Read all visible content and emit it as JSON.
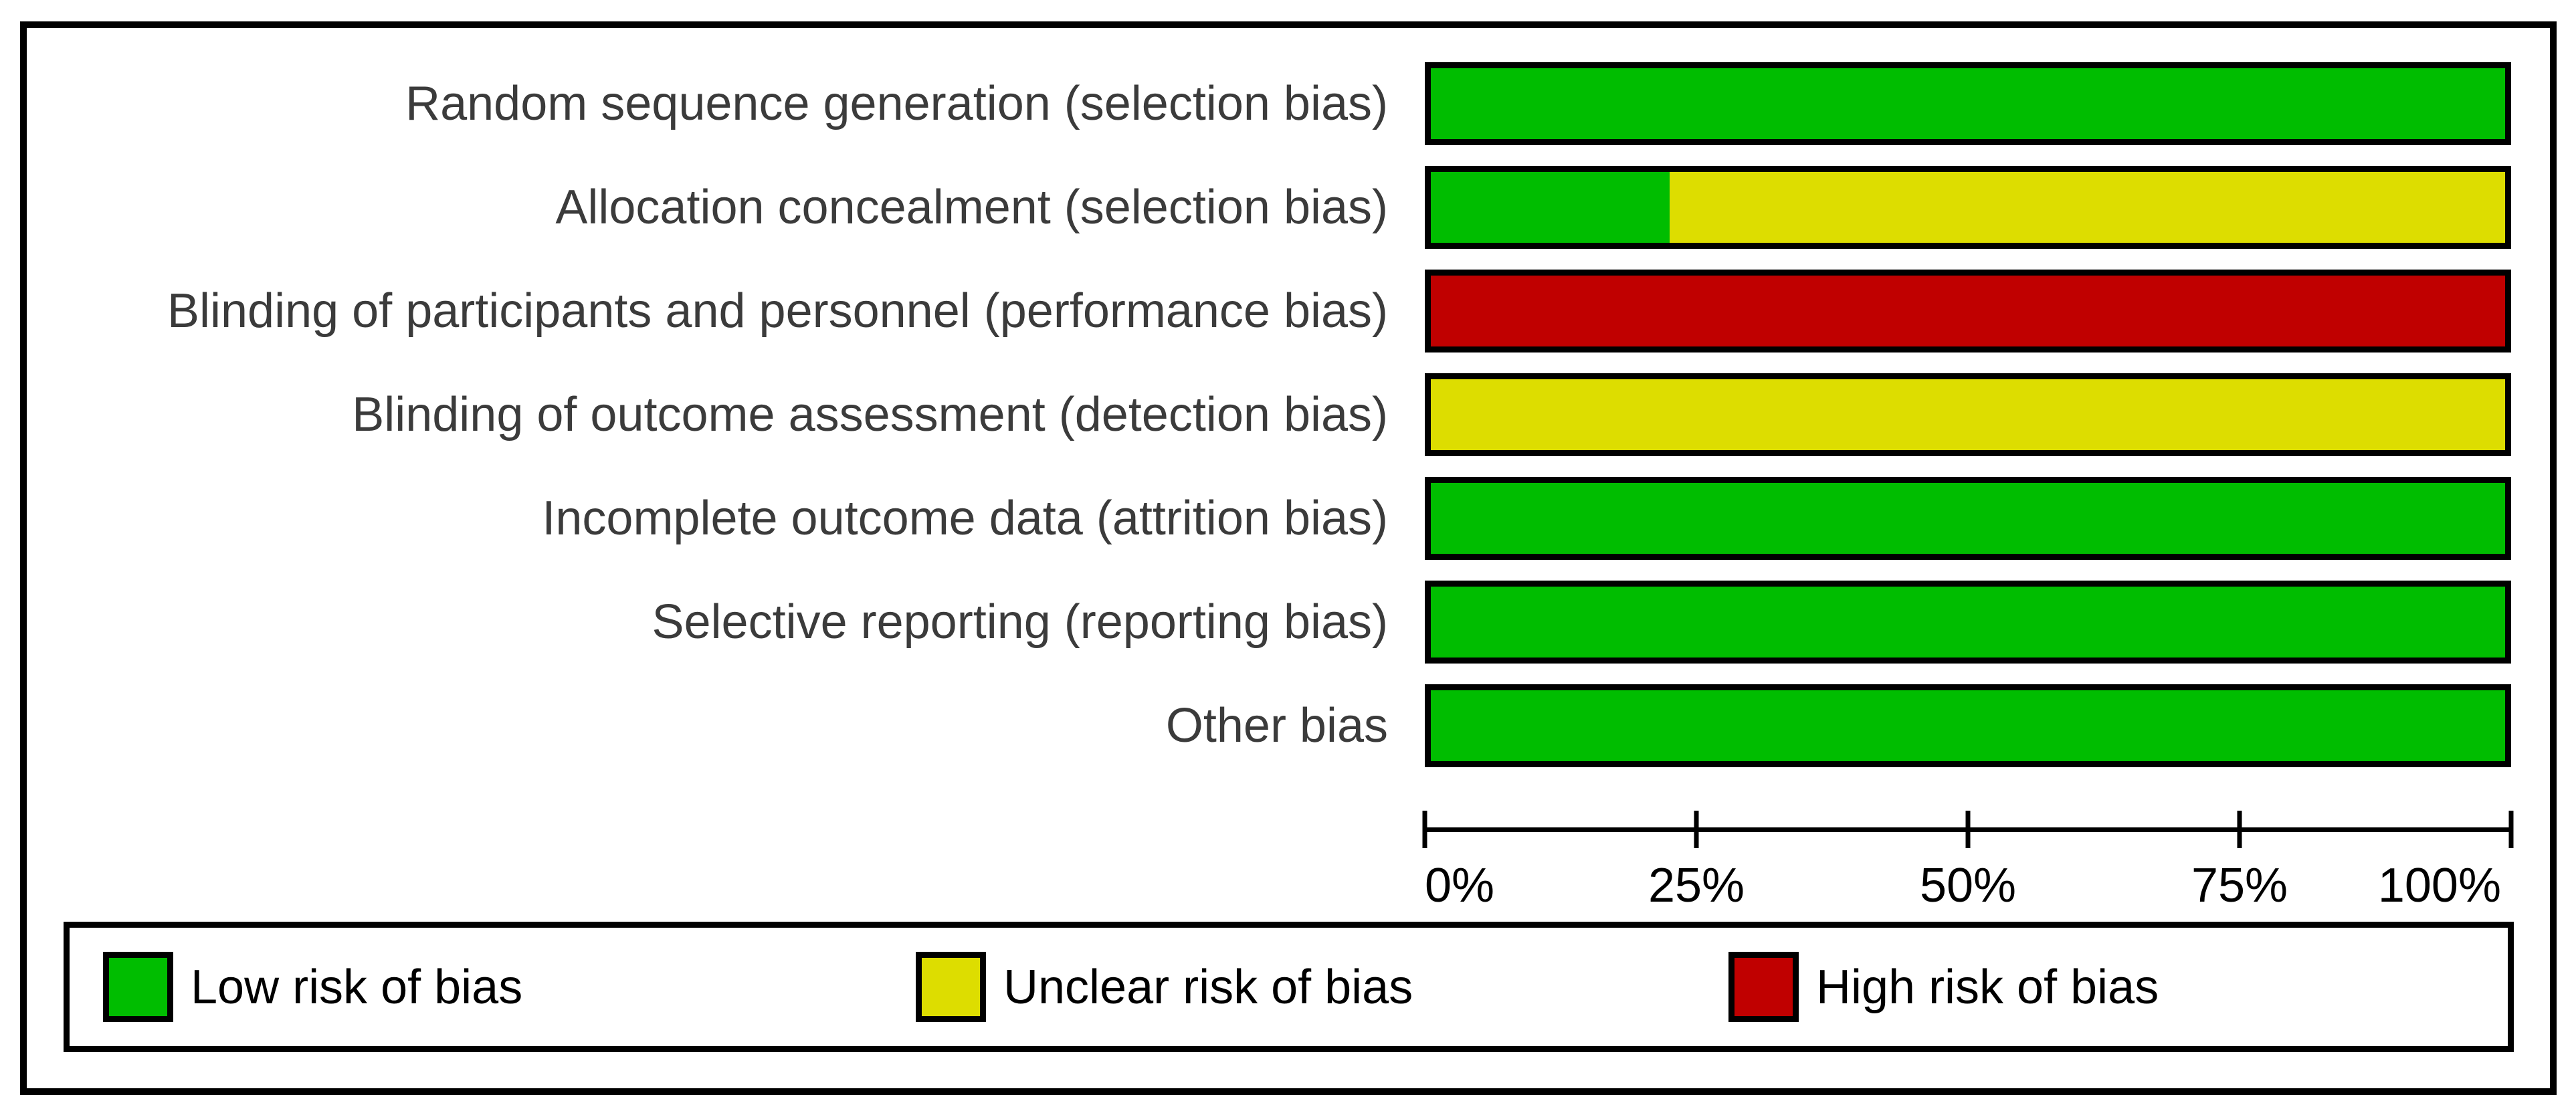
{
  "chart_data": {
    "type": "bar",
    "orientation": "horizontal",
    "stacked": true,
    "title": "",
    "xlabel": "",
    "ylabel": "",
    "grid": false,
    "categories": [
      "Random sequence generation (selection bias)",
      "Allocation concealment (selection bias)",
      "Blinding of participants and personnel (performance bias)",
      "Blinding of outcome assessment (detection bias)",
      "Incomplete outcome data (attrition bias)",
      "Selective reporting (reporting bias)",
      "Other bias"
    ],
    "series": [
      {
        "name": "Low risk of bias",
        "color": "#00bd00",
        "values": [
          100,
          22.2,
          0,
          0,
          100,
          100,
          100
        ]
      },
      {
        "name": "Unclear risk of bias",
        "color": "#dddd00",
        "values": [
          0,
          77.8,
          0,
          100,
          0,
          0,
          0
        ]
      },
      {
        "name": "High risk of bias",
        "color": "#c00000",
        "values": [
          0,
          0,
          100,
          0,
          0,
          0,
          0
        ]
      }
    ],
    "x_axis": {
      "range": [
        0,
        100
      ],
      "tick_values": [
        0,
        25,
        50,
        75,
        100
      ],
      "tick_labels": [
        "0%",
        "25%",
        "50%",
        "75%",
        "100%"
      ]
    },
    "legend": {
      "position": "bottom",
      "entries": [
        {
          "label": "Low risk of bias",
          "color": "#00bd00"
        },
        {
          "label": "Unclear risk of bias",
          "color": "#dddd00"
        },
        {
          "label": "High risk of bias",
          "color": "#c00000"
        }
      ]
    },
    "colors": {
      "frame_border": "#000000",
      "bar_border": "#000000",
      "axis": "#000000",
      "category_label_text": "#3b3b3b",
      "legend_text": "#000000",
      "background": "#ffffff"
    }
  }
}
